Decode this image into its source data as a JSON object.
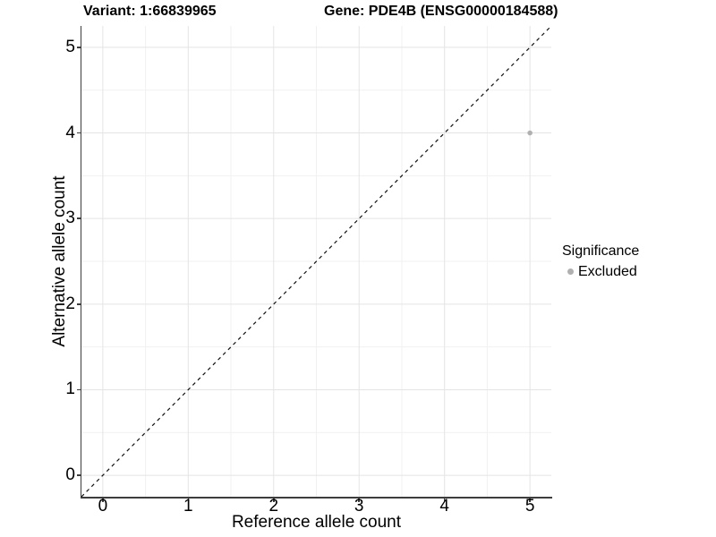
{
  "title": {
    "variant": "Variant: 1:66839965",
    "gene": "Gene: PDE4B (ENSG00000184588)"
  },
  "x_axis": {
    "label": "Reference allele count",
    "ticks": [
      "0",
      "1",
      "2",
      "3",
      "4",
      "5"
    ]
  },
  "y_axis": {
    "label": "Alternative allele count",
    "ticks": [
      "0",
      "1",
      "2",
      "3",
      "4",
      "5"
    ]
  },
  "legend": {
    "title": "Significance",
    "items": [
      {
        "label": "Excluded",
        "symbol": "dot",
        "color": "#b0b0b0"
      }
    ]
  },
  "colors": {
    "background": "#ffffff",
    "text": "#000000",
    "axis_line": "#3d3d3d",
    "major_grid": "#e4e4e4",
    "minor_grid": "#f1f1f1",
    "identity_line": "#111111",
    "point": "#b0b0b0"
  },
  "chart_data": {
    "type": "scatter",
    "title": "Variant: 1:66839965 | Gene: PDE4B (ENSG00000184588)",
    "xlabel": "Reference allele count",
    "ylabel": "Alternative allele count",
    "xlim": [
      -0.25,
      5.25
    ],
    "ylim": [
      -0.25,
      5.25
    ],
    "x_ticks": [
      0,
      1,
      2,
      3,
      4,
      5
    ],
    "y_ticks": [
      0,
      1,
      2,
      3,
      4,
      5
    ],
    "grid": {
      "major_x": [
        0,
        1,
        2,
        3,
        4,
        5
      ],
      "major_y": [
        0,
        1,
        2,
        3,
        4,
        5
      ],
      "minor_x": [
        0.5,
        1.5,
        2.5,
        3.5,
        4.5
      ],
      "minor_y": [
        0.5,
        1.5,
        2.5,
        3.5,
        4.5
      ]
    },
    "identity_line": {
      "style": "dashed",
      "from": [
        -0.25,
        -0.25
      ],
      "to": [
        5.25,
        5.25
      ]
    },
    "series": [
      {
        "name": "Excluded",
        "color": "#b0b0b0",
        "points": [
          [
            5,
            4
          ]
        ]
      }
    ],
    "legend_position": "right",
    "legend_title": "Significance",
    "grid_on": true
  }
}
